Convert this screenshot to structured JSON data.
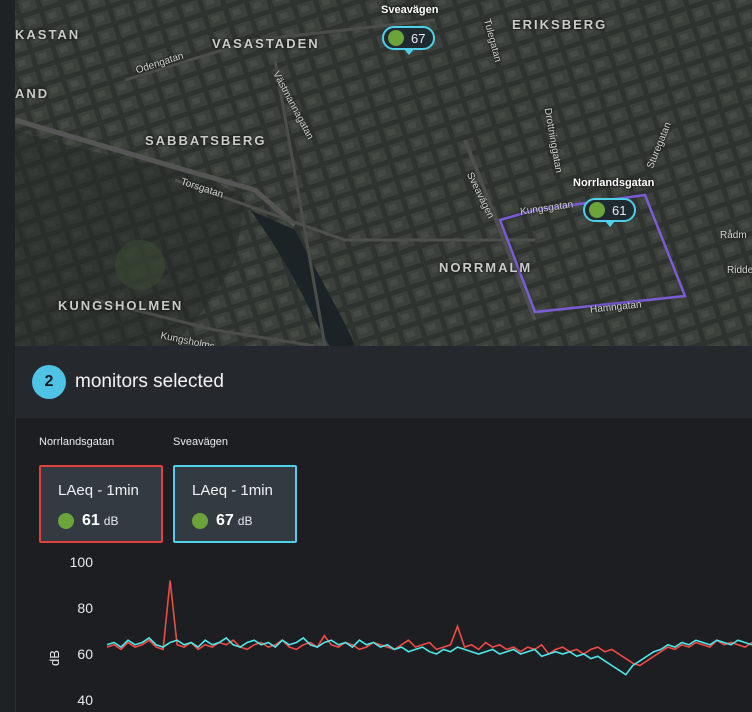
{
  "map": {
    "districts": [
      {
        "name": "KASTAN"
      },
      {
        "name": "VASASTADEN"
      },
      {
        "name": "ERIKSBERG"
      },
      {
        "name": "AND"
      },
      {
        "name": "SABBATSBERG"
      },
      {
        "name": "NORRMALM"
      },
      {
        "name": "KUNGSHOLMEN"
      }
    ],
    "streets": [
      "Odengatan",
      "Västmannagatan",
      "Tulegatan",
      "Torsgatan",
      "Sveavägen",
      "Kungsgatan",
      "Sturegatan",
      "Drottninggatan",
      "Hamngatan",
      "Kungsholms",
      "Rådm",
      "Ridde"
    ],
    "markers": [
      {
        "title": "Sveavägen",
        "value": "67",
        "status_color": "#6ca33a"
      },
      {
        "title": "Norrlandsgatan",
        "value": "61",
        "status_color": "#6ca33a"
      }
    ],
    "area_color": "#7b5cd6"
  },
  "selection": {
    "count": "2",
    "label": "monitors selected"
  },
  "monitors": [
    {
      "name": "Norrlandsgatan",
      "metric": "LAeq - 1min",
      "value": "61",
      "unit": "dB",
      "border_color": "#e0423f",
      "status_color": "#6ca33a"
    },
    {
      "name": "Sveavägen",
      "metric": "LAeq - 1min",
      "value": "67",
      "unit": "dB",
      "border_color": "#4fd0e8",
      "status_color": "#6ca33a"
    }
  ],
  "chart_data": {
    "type": "line",
    "ylabel": "dB",
    "ylim": [
      40,
      100
    ],
    "yticks": [
      "100",
      "80",
      "60",
      "40"
    ],
    "grid": false,
    "series": [
      {
        "name": "Norrlandsgatan",
        "color": "#f04a45",
        "values": [
          63,
          64,
          62,
          65,
          63,
          64,
          66,
          63,
          62,
          92,
          64,
          63,
          65,
          62,
          64,
          63,
          65,
          64,
          66,
          63,
          62,
          64,
          65,
          63,
          64,
          66,
          63,
          62,
          64,
          65,
          63,
          68,
          64,
          63,
          65,
          64,
          62,
          63,
          65,
          64,
          63,
          62,
          64,
          66,
          63,
          64,
          65,
          62,
          63,
          64,
          72,
          63,
          64,
          62,
          65,
          63,
          64,
          62,
          63,
          61,
          63,
          62,
          64,
          60,
          62,
          63,
          61,
          62,
          60,
          62,
          63,
          61,
          62,
          60,
          58,
          56,
          55,
          57,
          59,
          61,
          63,
          62,
          64,
          63,
          65,
          64,
          63,
          66,
          64,
          65,
          64,
          63,
          65
        ]
      },
      {
        "name": "Sveavägen",
        "color": "#4ee8e8",
        "values": [
          64,
          65,
          63,
          66,
          64,
          65,
          67,
          64,
          63,
          65,
          66,
          64,
          65,
          63,
          66,
          64,
          65,
          67,
          64,
          63,
          65,
          66,
          64,
          65,
          63,
          66,
          64,
          65,
          67,
          64,
          63,
          65,
          66,
          64,
          65,
          63,
          66,
          64,
          65,
          63,
          64,
          62,
          63,
          61,
          62,
          63,
          61,
          60,
          62,
          61,
          63,
          62,
          61,
          60,
          61,
          62,
          60,
          61,
          62,
          60,
          61,
          62,
          59,
          60,
          61,
          60,
          61,
          59,
          60,
          58,
          59,
          57,
          55,
          53,
          51,
          55,
          57,
          59,
          61,
          62,
          64,
          63,
          65,
          64,
          66,
          65,
          64,
          66,
          65,
          64,
          66,
          65,
          64
        ]
      }
    ]
  }
}
